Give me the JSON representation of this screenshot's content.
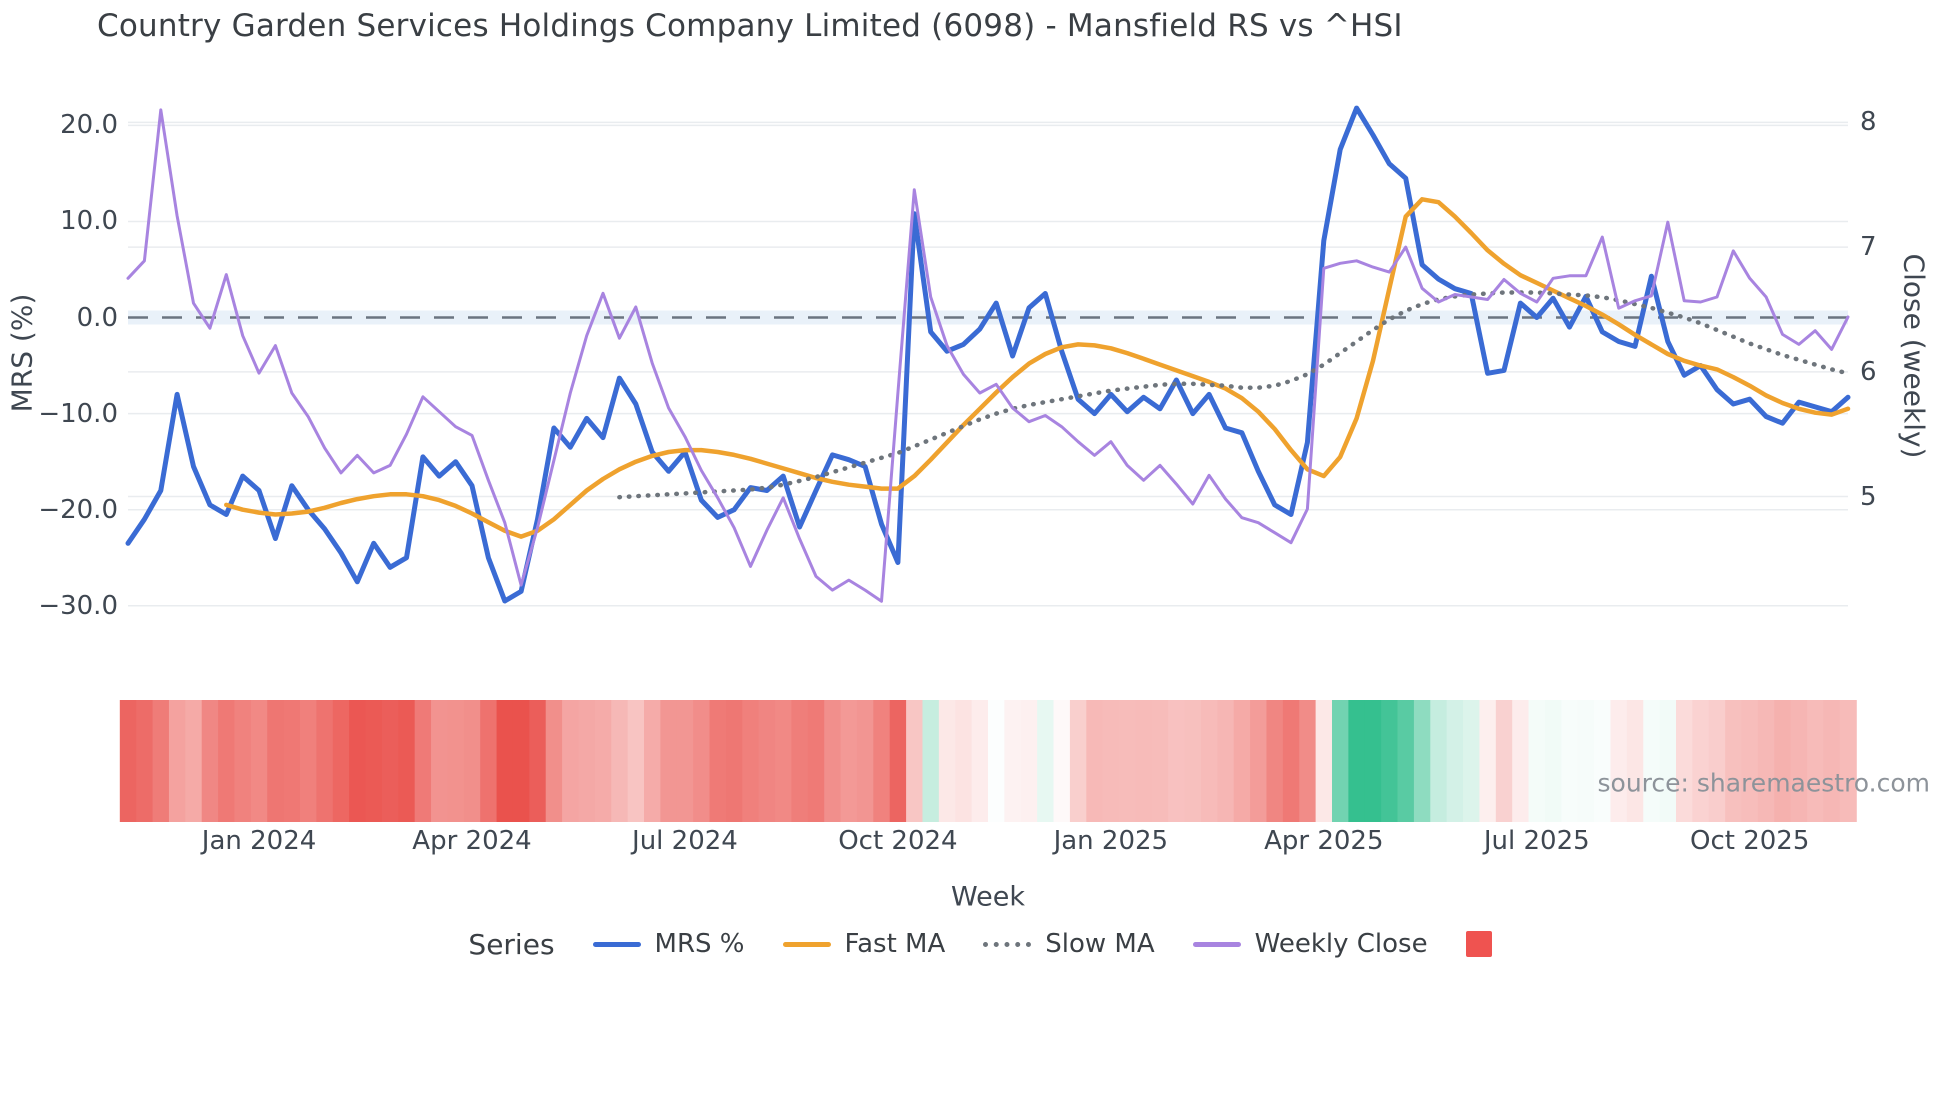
{
  "title": "Country Garden Services Holdings Company Limited (6098) - Mansfield RS vs ^HSI",
  "source_note": "source: sharemaestro.com",
  "axes": {
    "left": {
      "title": "MRS (%)",
      "tick_labels": [
        "20.0",
        "10.0",
        "0.0",
        "−10.0",
        "−20.0",
        "−30.0"
      ],
      "tick_values": [
        20,
        10,
        0,
        -10,
        -20,
        -30
      ],
      "range": [
        -32,
        24.2
      ]
    },
    "right": {
      "title": "Close (weekly)",
      "tick_labels": [
        "8",
        "7",
        "6",
        "5"
      ],
      "tick_values": [
        8,
        7,
        6,
        5
      ],
      "range": [
        3.97,
        8.3
      ]
    },
    "x": {
      "title": "Week",
      "tick_labels": [
        "Jan 2024",
        "Apr 2024",
        "Jul 2024",
        "Oct 2024",
        "Jan 2025",
        "Apr 2025",
        "Jul 2025",
        "Oct 2025"
      ],
      "tick_indices": [
        8,
        21,
        34,
        47,
        60,
        73,
        86,
        99
      ]
    }
  },
  "legend": {
    "label": "Series",
    "items": [
      {
        "label": "MRS %",
        "style": "solid",
        "color": "#3a6bd4"
      },
      {
        "label": "Fast MA",
        "style": "solid",
        "color": "#efa22e"
      },
      {
        "label": "Slow MA",
        "style": "dotted",
        "color": "#6e757c"
      },
      {
        "label": "Weekly Close",
        "style": "solid",
        "color": "#a884e0"
      },
      {
        "label": "",
        "style": "square",
        "color": "#ef5350"
      }
    ]
  },
  "colors": {
    "grid": "#e9ecef",
    "zero_band": "#e9f1f9",
    "zero_dash": "#6a7480",
    "heat_negative": "#ea524d",
    "heat_positive": "#35c08f",
    "mrs_line": "#3a6bd4",
    "fast_ma_line": "#efa22e",
    "slow_ma_line": "#6e757c",
    "weekly_close_line": "#a884e0"
  },
  "chart_data": {
    "type": "line",
    "title": "Country Garden Services Holdings Company Limited (6098) - Mansfield RS vs ^HSI",
    "xlabel": "Week",
    "ylabel_left": "MRS (%)",
    "ylabel_right": "Close (weekly)",
    "x_unit": "weekly index, mid-Nov 2023 to mid-Nov 2025",
    "n_points": 106,
    "ylim_left": [
      -32,
      24.2
    ],
    "ylim_right": [
      3.97,
      8.3
    ],
    "zero_line_left_axis": 0,
    "grid": true,
    "legend_position": "bottom",
    "series": [
      {
        "name": "MRS %",
        "axis": "left",
        "style": "solid",
        "values": [
          -23.5,
          -21,
          -18,
          -8,
          -15.5,
          -19.5,
          -20.5,
          -16.5,
          -18,
          -23,
          -17.5,
          -20,
          -22,
          -24.5,
          -27.5,
          -23.5,
          -26,
          -25,
          -14.5,
          -16.5,
          -15,
          -17.5,
          -25,
          -29.5,
          -28.5,
          -21,
          -11.5,
          -13.5,
          -10.5,
          -12.5,
          -6.3,
          -9,
          -14,
          -16,
          -14,
          -19,
          -20.8,
          -20,
          -17.7,
          -18,
          -16.5,
          -21.8,
          -18,
          -14.3,
          -14.8,
          -15.5,
          -21.5,
          -25.5,
          10.8,
          -1.5,
          -3.5,
          -2.8,
          -1.2,
          1.5,
          -4,
          1,
          2.5,
          -3.5,
          -8.5,
          -10,
          -8,
          -9.8,
          -8.3,
          -9.5,
          -6.5,
          -10,
          -8,
          -11.5,
          -12,
          -16,
          -19.5,
          -20.5,
          -13,
          8,
          17.5,
          21.8,
          19,
          16,
          14.5,
          5.5,
          4,
          3,
          2.5,
          -5.8,
          -5.5,
          1.5,
          0,
          2,
          -1,
          2.2,
          -1.5,
          -2.5,
          -3,
          4.3,
          -2.5,
          -6,
          -5,
          -7.5,
          -9,
          -8.5,
          -10.3,
          -11,
          -8.8,
          -9.3,
          -9.8,
          -8.3
        ]
      },
      {
        "name": "Fast MA",
        "axis": "left",
        "style": "solid",
        "values": [
          null,
          null,
          null,
          null,
          null,
          null,
          -19.5,
          -20,
          -20.3,
          -20.5,
          -20.4,
          -20.2,
          -19.8,
          -19.3,
          -18.9,
          -18.6,
          -18.4,
          -18.4,
          -18.6,
          -19,
          -19.6,
          -20.4,
          -21.3,
          -22.2,
          -22.8,
          -22.2,
          -21,
          -19.5,
          -18,
          -16.8,
          -15.8,
          -15,
          -14.4,
          -14,
          -13.8,
          -13.8,
          -14,
          -14.3,
          -14.7,
          -15.2,
          -15.7,
          -16.2,
          -16.7,
          -17.1,
          -17.4,
          -17.6,
          -17.8,
          -17.8,
          -16.5,
          -14.8,
          -13,
          -11.2,
          -9.5,
          -7.8,
          -6.2,
          -4.8,
          -3.8,
          -3.1,
          -2.8,
          -2.9,
          -3.2,
          -3.7,
          -4.3,
          -4.9,
          -5.5,
          -6.1,
          -6.7,
          -7.4,
          -8.4,
          -9.8,
          -11.6,
          -13.8,
          -15.8,
          -16.5,
          -14.5,
          -10.5,
          -4.5,
          3,
          10.5,
          12.3,
          12,
          10.5,
          8.8,
          7,
          5.6,
          4.4,
          3.6,
          2.8,
          2,
          1.2,
          0.3,
          -0.7,
          -1.8,
          -2.8,
          -3.8,
          -4.5,
          -5,
          -5.4,
          -6.2,
          -7.1,
          -8.1,
          -8.9,
          -9.5,
          -9.9,
          -10.1,
          -9.5
        ]
      },
      {
        "name": "Slow MA",
        "axis": "left",
        "style": "dotted",
        "values": [
          null,
          null,
          null,
          null,
          null,
          null,
          null,
          null,
          null,
          null,
          null,
          null,
          null,
          null,
          null,
          null,
          null,
          null,
          null,
          null,
          null,
          null,
          null,
          null,
          null,
          null,
          null,
          null,
          null,
          null,
          -18.7,
          -18.6,
          -18.5,
          -18.4,
          -18.3,
          -18.2,
          -18.1,
          -18,
          -17.9,
          -17.7,
          -17.4,
          -17,
          -16.6,
          -16.1,
          -15.6,
          -15.1,
          -14.6,
          -14.1,
          -13.4,
          -12.7,
          -12,
          -11.3,
          -10.6,
          -10,
          -9.5,
          -9.1,
          -8.8,
          -8.5,
          -8.2,
          -7.9,
          -7.6,
          -7.4,
          -7.2,
          -7,
          -6.9,
          -6.9,
          -7,
          -7.1,
          -7.3,
          -7.3,
          -7.1,
          -6.6,
          -5.9,
          -4.9,
          -3.7,
          -2.5,
          -1.3,
          -0.2,
          0.7,
          1.4,
          1.9,
          2.2,
          2.4,
          2.5,
          2.6,
          2.6,
          2.6,
          2.5,
          2.4,
          2.3,
          2.1,
          1.8,
          1.4,
          1,
          0.5,
          0,
          -0.6,
          -1.3,
          -2,
          -2.7,
          -3.3,
          -3.9,
          -4.4,
          -4.9,
          -5.4,
          -5.8
        ]
      },
      {
        "name": "Weekly Close",
        "axis": "right",
        "style": "solid",
        "values": [
          6.75,
          6.89,
          8.1,
          7.25,
          6.55,
          6.35,
          6.78,
          6.29,
          5.99,
          6.21,
          5.83,
          5.64,
          5.39,
          5.19,
          5.33,
          5.19,
          5.25,
          5.5,
          5.8,
          5.68,
          5.56,
          5.49,
          5.13,
          4.79,
          4.29,
          4.75,
          5.29,
          5.83,
          6.29,
          6.63,
          6.27,
          6.52,
          6.07,
          5.71,
          5.48,
          5.21,
          4.99,
          4.75,
          4.44,
          4.73,
          4.99,
          4.66,
          4.36,
          4.25,
          4.33,
          4.25,
          4.16,
          5.83,
          7.46,
          6.6,
          6.21,
          5.98,
          5.83,
          5.9,
          5.71,
          5.6,
          5.65,
          5.56,
          5.44,
          5.33,
          5.44,
          5.25,
          5.13,
          5.25,
          5.1,
          4.94,
          5.17,
          4.98,
          4.83,
          4.79,
          4.71,
          4.63,
          4.9,
          6.83,
          6.87,
          6.89,
          6.84,
          6.8,
          7.0,
          6.67,
          6.56,
          6.62,
          6.6,
          6.58,
          6.74,
          6.63,
          6.56,
          6.75,
          6.77,
          6.77,
          7.08,
          6.51,
          6.57,
          6.61,
          7.2,
          6.57,
          6.56,
          6.6,
          6.97,
          6.75,
          6.6,
          6.3,
          6.22,
          6.33,
          6.18,
          6.44
        ]
      }
    ],
    "heatmap_strip": {
      "derived_from": "MRS %",
      "negative_color": "#ea524d",
      "positive_color": "#35c08f",
      "neutral_color": "#ffffff"
    }
  }
}
